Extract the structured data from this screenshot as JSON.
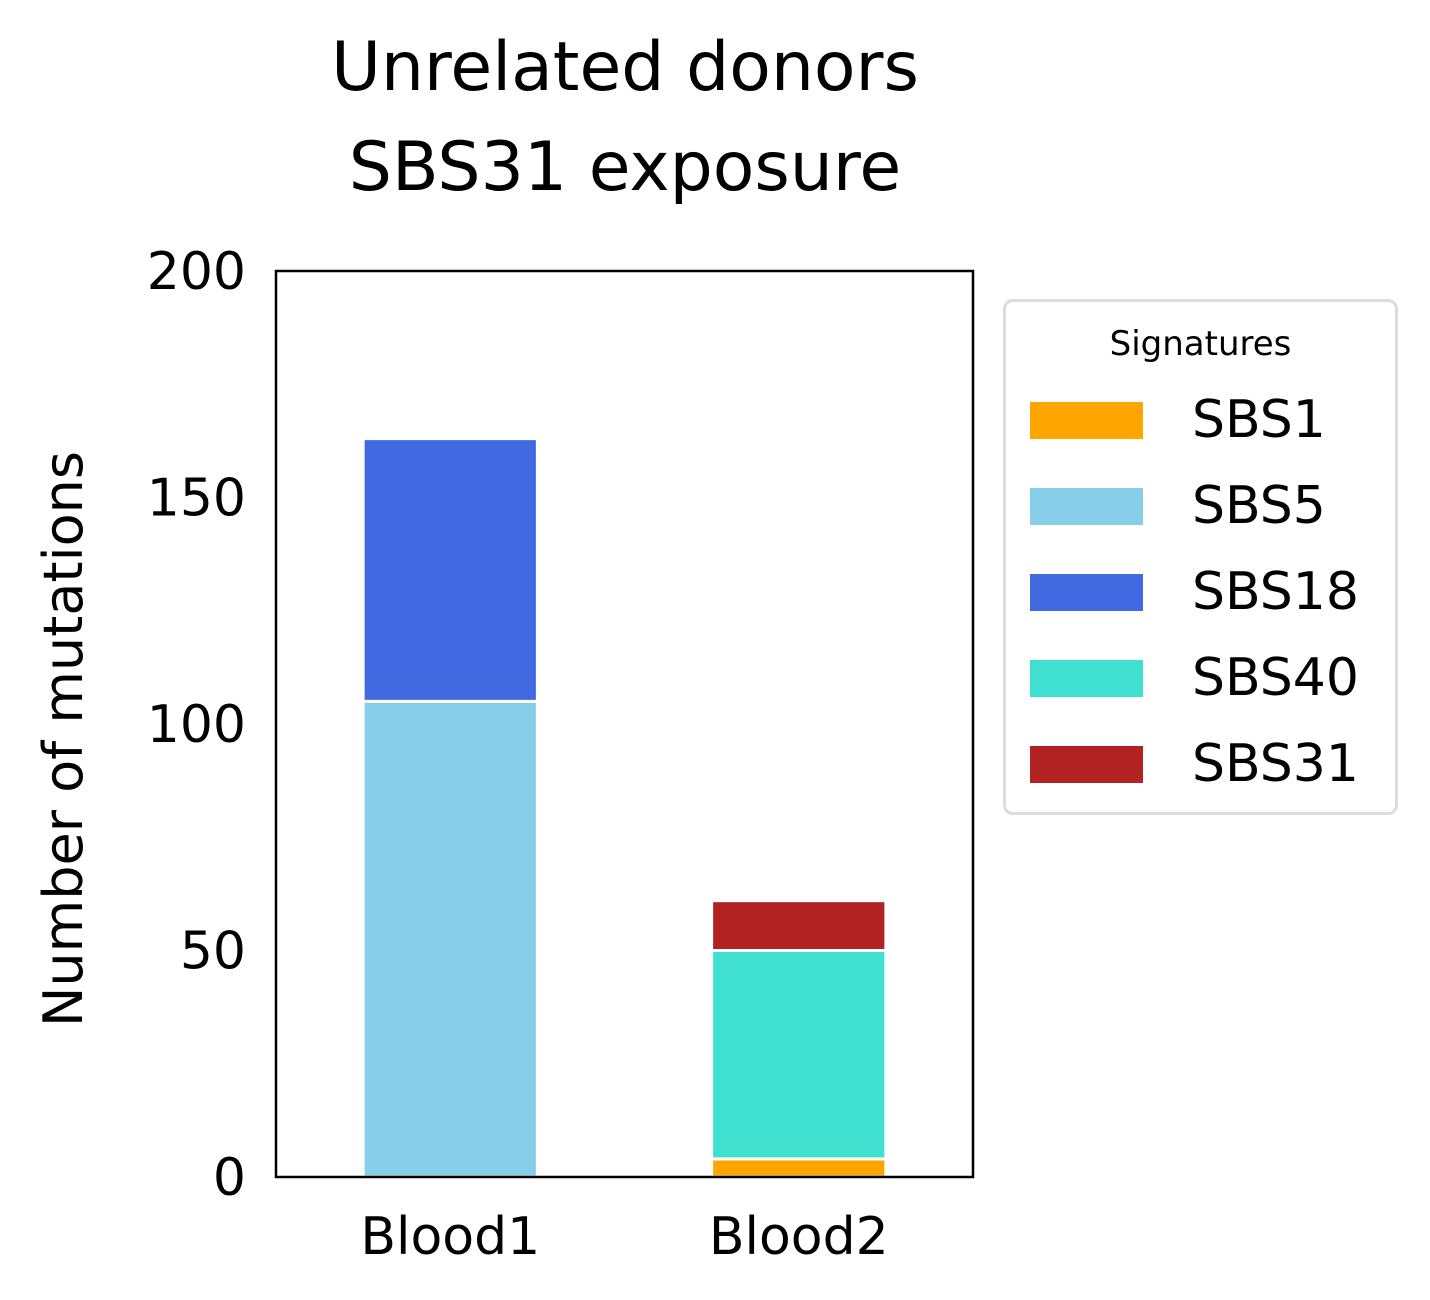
{
  "chart_data": {
    "type": "bar",
    "stacked": true,
    "title": [
      "Unrelated donors",
      "SBS31 exposure"
    ],
    "xlabel": "",
    "ylabel": "Number of mutations",
    "categories": [
      "Blood1",
      "Blood2"
    ],
    "ylim": [
      0,
      200
    ],
    "yticks": [
      0,
      50,
      100,
      150,
      200
    ],
    "grid": false,
    "legend": {
      "title": "Signatures",
      "placement": "right-outside"
    },
    "series": [
      {
        "name": "SBS1",
        "color": "#FFA500",
        "values": [
          0,
          4
        ]
      },
      {
        "name": "SBS5",
        "color": "#87CEEB",
        "values": [
          105,
          0
        ]
      },
      {
        "name": "SBS18",
        "color": "#4169E1",
        "values": [
          58,
          0
        ]
      },
      {
        "name": "SBS40",
        "color": "#40E0D0",
        "values": [
          0,
          46
        ]
      },
      {
        "name": "SBS31",
        "color": "#B22222",
        "values": [
          0,
          11
        ]
      }
    ]
  }
}
